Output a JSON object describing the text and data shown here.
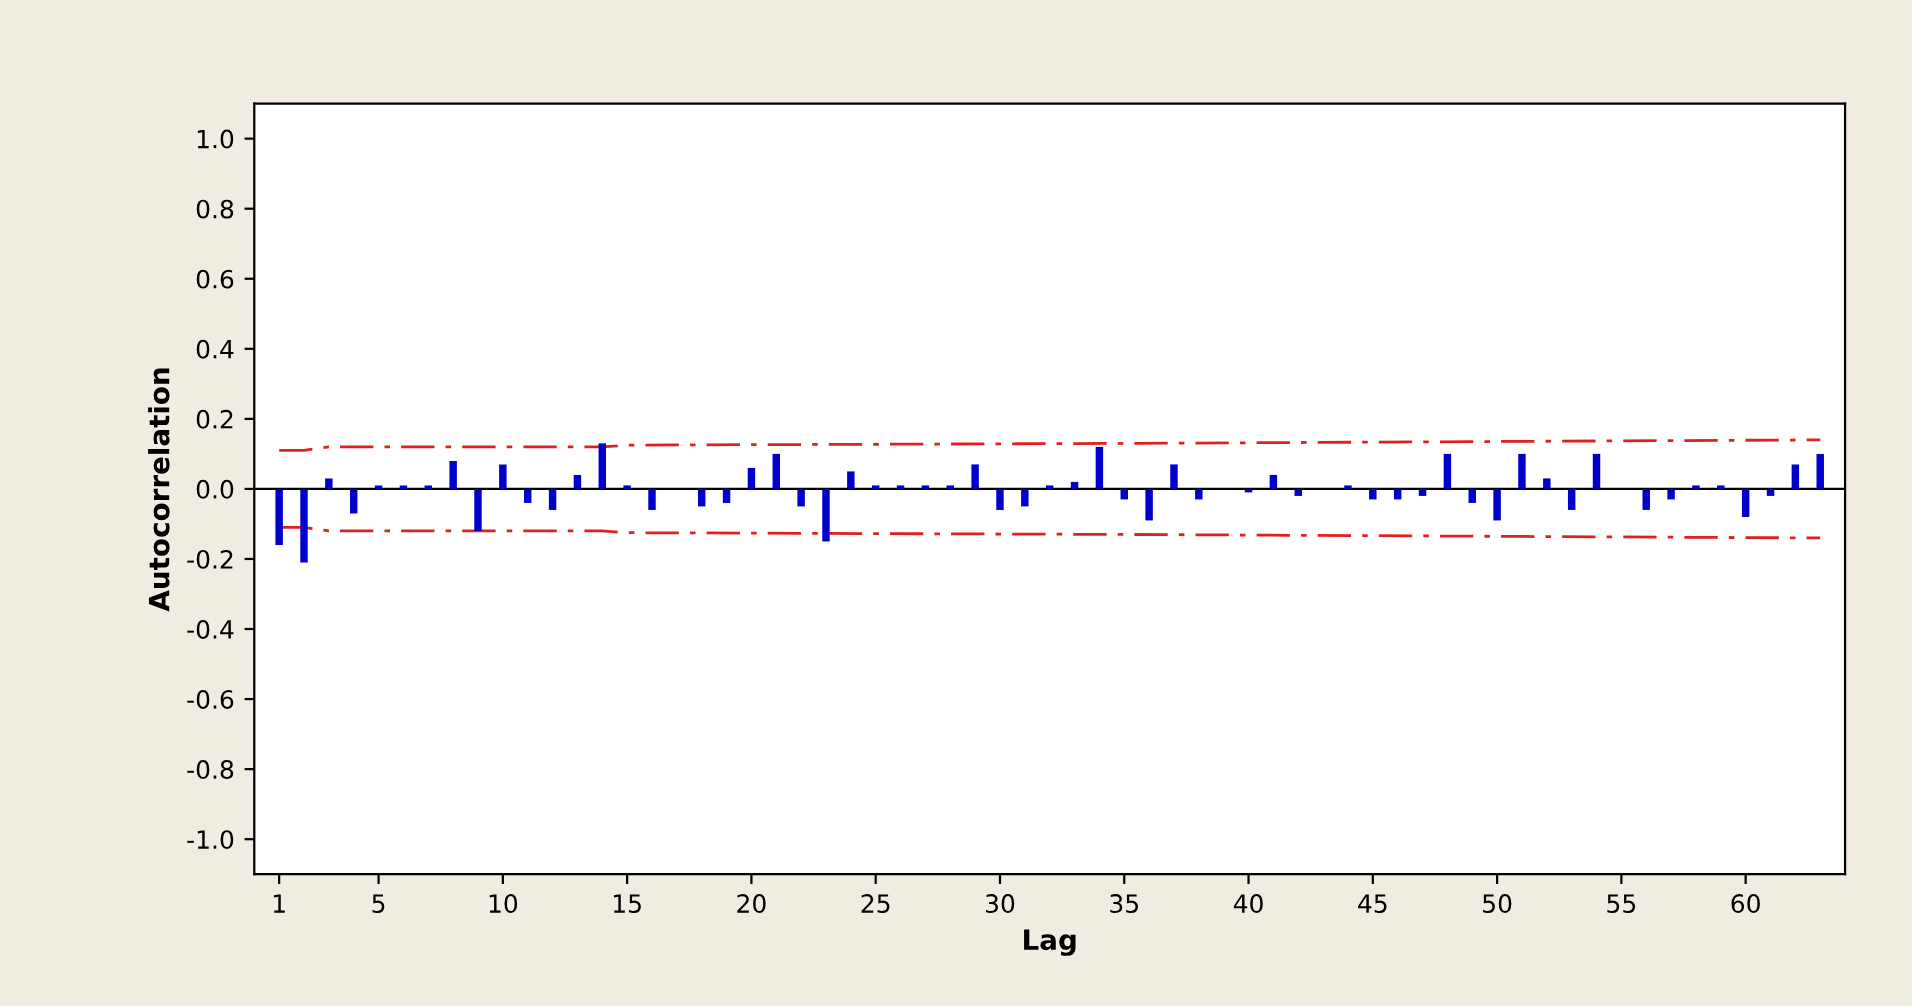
{
  "chart_data": {
    "type": "bar",
    "xlabel": "Lag",
    "ylabel": "Autocorrelation",
    "x": [
      1,
      2,
      3,
      4,
      5,
      6,
      7,
      8,
      9,
      10,
      11,
      12,
      13,
      14,
      15,
      16,
      17,
      18,
      19,
      20,
      21,
      22,
      23,
      24,
      25,
      26,
      27,
      28,
      29,
      30,
      31,
      32,
      33,
      34,
      35,
      36,
      37,
      38,
      39,
      40,
      41,
      42,
      43,
      44,
      45,
      46,
      47,
      48,
      49,
      50,
      51,
      52,
      53,
      54,
      55,
      56,
      57,
      58,
      59,
      60,
      61,
      62,
      63
    ],
    "series": [
      {
        "color": "#0000cc",
        "values": [
          -0.16,
          -0.21,
          0.03,
          -0.07,
          0.01,
          0.01,
          0.01,
          0.08,
          -0.12,
          0.07,
          -0.04,
          -0.06,
          0.04,
          0.13,
          0.01,
          -0.06,
          0.0,
          -0.05,
          -0.04,
          0.06,
          0.1,
          -0.05,
          -0.15,
          0.05,
          0.01,
          0.01,
          0.01,
          0.01,
          0.07,
          -0.06,
          -0.05,
          0.01,
          0.02,
          0.12,
          -0.03,
          -0.09,
          0.07,
          -0.03,
          0.0,
          -0.01,
          0.04,
          -0.02,
          0.0,
          0.01,
          -0.03,
          -0.03,
          -0.02,
          0.1,
          -0.04,
          -0.09,
          0.1,
          0.03,
          -0.06,
          0.1,
          0.0,
          -0.06,
          -0.03,
          0.01,
          0.01,
          -0.08,
          -0.02,
          0.07,
          0.1
        ]
      },
      {
        "type": "line",
        "color": "#e02020",
        "line_style": "dashed",
        "x": [
          1,
          2,
          3,
          14,
          15,
          35,
          63
        ],
        "values": [
          0.11,
          0.11,
          0.12,
          0.12,
          0.125,
          0.13,
          0.14
        ]
      },
      {
        "type": "line",
        "color": "#e02020",
        "line_style": "dashed",
        "x": [
          1,
          2,
          3,
          14,
          15,
          35,
          63
        ],
        "values": [
          -0.11,
          -0.11,
          -0.12,
          -0.12,
          -0.125,
          -0.13,
          -0.14
        ]
      }
    ],
    "xlim": [
      0,
      64
    ],
    "xticks": [
      1,
      5,
      10,
      15,
      20,
      25,
      30,
      35,
      40,
      45,
      50,
      55,
      60
    ],
    "ylim": [
      -1.1,
      1.1
    ],
    "yticks": [
      {
        "value": -1.0,
        "label": "-1.0"
      },
      {
        "value": -0.8,
        "label": "-0.8"
      },
      {
        "value": -0.6,
        "label": "-0.6"
      },
      {
        "value": -0.4,
        "label": "-0.4"
      },
      {
        "value": -0.2,
        "label": "-0.2"
      },
      {
        "value": 0.0,
        "label": "0.0"
      },
      {
        "value": 0.2,
        "label": "0.2"
      },
      {
        "value": 0.4,
        "label": "0.4"
      },
      {
        "value": 0.6,
        "label": "0.6"
      },
      {
        "value": 0.8,
        "label": "0.8"
      },
      {
        "value": 1.0,
        "label": "1.0"
      }
    ],
    "ref_lines": [
      {
        "axis": "y",
        "value": 0,
        "color": "#000000"
      }
    ],
    "grid": false
  }
}
